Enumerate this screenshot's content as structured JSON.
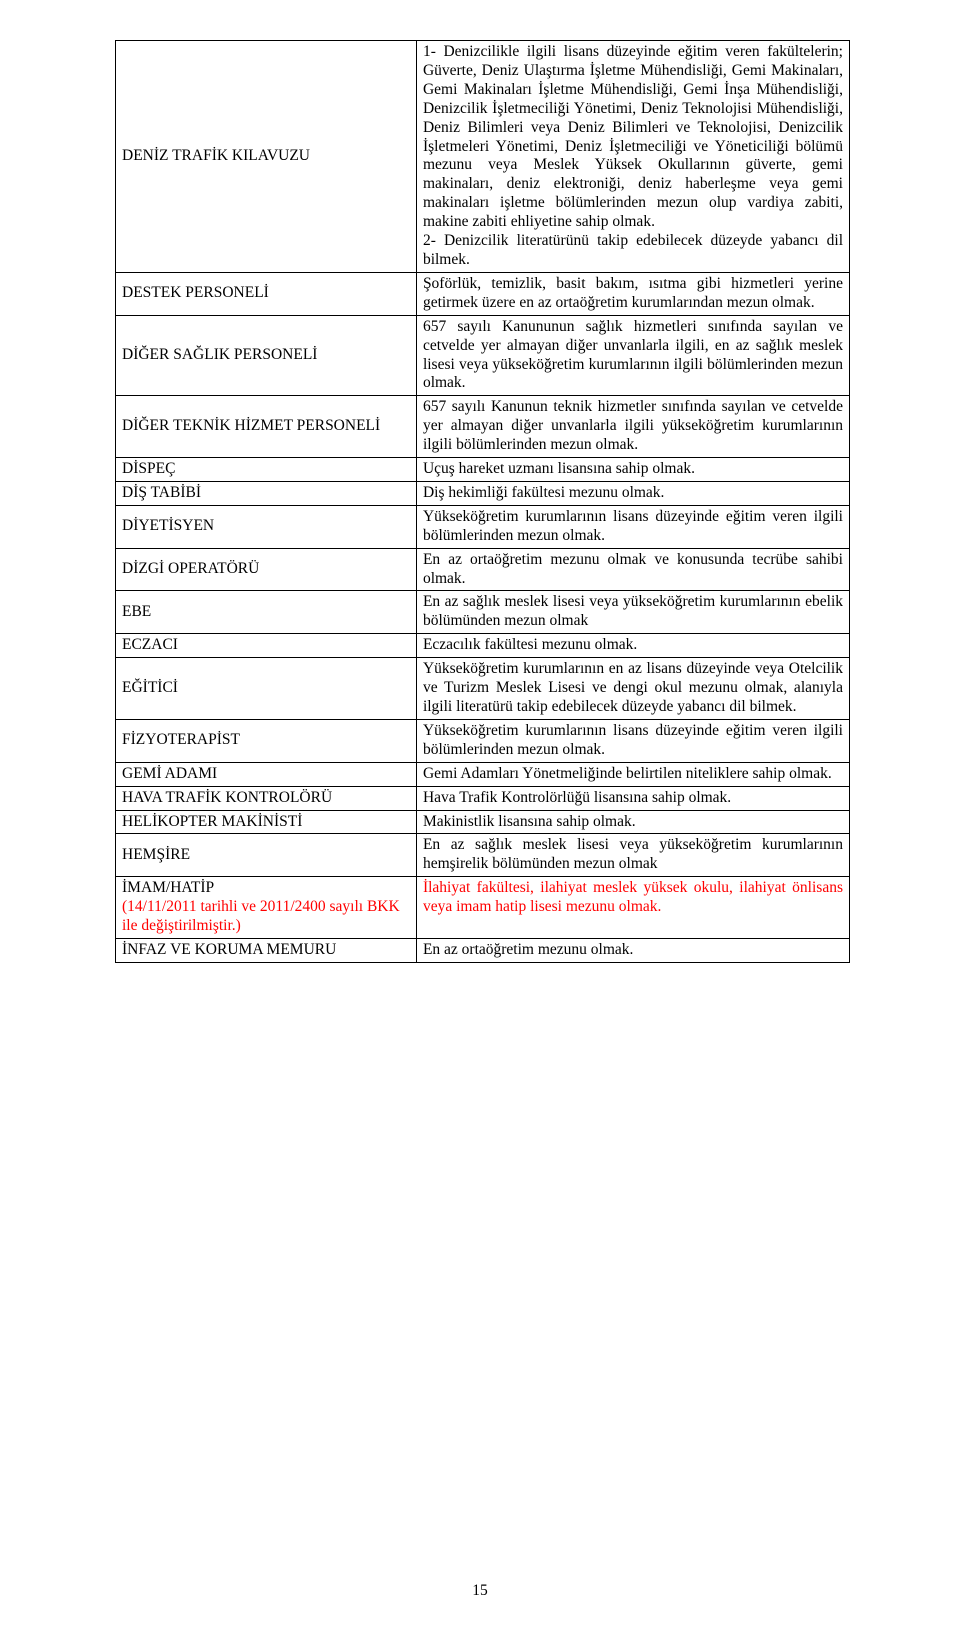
{
  "page_number": "15",
  "colors": {
    "accent_red": "#ff0000",
    "text": "#000000",
    "border": "#000000",
    "bg": "#ffffff"
  },
  "rows": [
    {
      "label": "DENİZ TRAFİK KILAVUZU",
      "desc": "1- Denizcilikle ilgili lisans düzeyinde eğitim veren fakültelerin; Güverte, Deniz Ulaştırma İşletme Mühendisliği, Gemi Makinaları, Gemi Makinaları İşletme Mühendisliği, Gemi İnşa Mühendisliği, Denizcilik İşletmeciliği Yönetimi, Deniz Teknolojisi Mühendisliği, Deniz Bilimleri veya Deniz Bilimleri ve Teknolojisi, Denizcilik İşletmeleri Yönetimi, Deniz İşletmeciliği ve Yöneticiliği bölümü mezunu veya Meslek Yüksek Okullarının güverte, gemi makinaları, deniz elektroniği, deniz haberleşme veya gemi makinaları işletme bölümlerinden mezun olup vardiya zabiti, makine zabiti ehliyetine sahip olmak.\n2- Denizcilik literatürünü takip edebilecek düzeyde yabancı dil bilmek."
    },
    {
      "label": "DESTEK PERSONELİ",
      "desc": "Şoförlük, temizlik, basit bakım, ısıtma gibi hizmetleri yerine getirmek üzere en az ortaöğretim kurumlarından mezun olmak."
    },
    {
      "label": "DİĞER SAĞLIK PERSONELİ",
      "desc": "657 sayılı Kanununun sağlık hizmetleri sınıfında sayılan ve cetvelde yer almayan diğer unvanlarla ilgili, en az sağlık meslek lisesi veya yükseköğretim kurumlarının ilgili bölümlerinden mezun olmak."
    },
    {
      "label": "DİĞER TEKNİK HİZMET PERSONELİ",
      "desc": "657 sayılı Kanunun teknik hizmetler sınıfında sayılan ve cetvelde yer almayan diğer unvanlarla ilgili yükseköğretim kurumlarının ilgili bölümlerinden mezun olmak."
    },
    {
      "label": "DİSPEÇ",
      "desc": "Uçuş hareket uzmanı lisansına sahip olmak."
    },
    {
      "label": "DİŞ TABİBİ",
      "desc": "Diş hekimliği fakültesi mezunu olmak."
    },
    {
      "label": "DİYETİSYEN",
      "desc": "Yükseköğretim kurumlarının lisans düzeyinde eğitim veren ilgili bölümlerinden mezun olmak."
    },
    {
      "label": "DİZGİ OPERATÖRÜ",
      "desc": "En az ortaöğretim mezunu olmak ve konusunda tecrübe sahibi olmak."
    },
    {
      "label": "EBE",
      "desc": "En az sağlık meslek lisesi veya yükseköğretim kurumlarının ebelik bölümünden mezun olmak"
    },
    {
      "label": "ECZACI",
      "desc": "Eczacılık fakültesi mezunu olmak."
    },
    {
      "label": "EĞİTİCİ",
      "desc": "Yükseköğretim kurumlarının en az lisans düzeyinde veya Otelcilik ve Turizm Meslek Lisesi ve dengi okul mezunu olmak, alanıyla ilgili literatürü takip edebilecek düzeyde yabancı dil bilmek."
    },
    {
      "label": "FİZYOTERAPİST",
      "desc": "Yükseköğretim kurumlarının lisans düzeyinde eğitim veren ilgili bölümlerinden mezun olmak."
    },
    {
      "label": "GEMİ ADAMI",
      "desc": "Gemi Adamları Yönetmeliğinde belirtilen niteliklere sahip olmak."
    },
    {
      "label": "HAVA TRAFİK KONTROLÖRÜ",
      "desc": "Hava Trafik Kontrolörlüğü lisansına sahip olmak."
    },
    {
      "label": "HELİKOPTER MAKİNİSTİ",
      "desc": "Makinistlik lisansına sahip olmak."
    },
    {
      "label": "HEMŞİRE",
      "desc": "En az sağlık meslek lisesi veya yükseköğretim kurumlarının hemşirelik bölümünden mezun olmak"
    },
    {
      "label": "İMAM/HATİP",
      "label_note": "(14/11/2011 tarihli ve 2011/2400 sayılı BKK ile değiştirilmiştir.)",
      "label_note_color": "#ff0000",
      "desc": "İlahiyat fakültesi, ilahiyat meslek yüksek okulu, ilahiyat önlisans veya imam hatip lisesi mezunu olmak.",
      "desc_color": "#ff0000"
    },
    {
      "label": "İNFAZ VE KORUMA MEMURU",
      "desc": "En az ortaöğretim mezunu olmak."
    }
  ]
}
